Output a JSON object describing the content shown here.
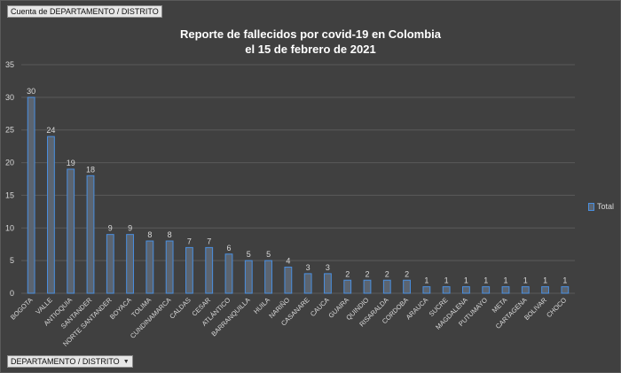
{
  "pivot": {
    "values_field": "Cuenta de DEPARTAMENTO / DISTRITO",
    "axis_field": "DEPARTAMENTO / DISTRITO",
    "axis_field_icon": "dropdown-arrow-icon"
  },
  "colors": {
    "background": "#404040",
    "bar_fill": "#5b6470",
    "bar_stroke": "#4a8fe0",
    "gridline": "#5a5a5a",
    "text": "#d9d9d9"
  },
  "chart_data": {
    "type": "bar",
    "title": "Reporte de fallecidos por covid-19 en Colombia",
    "subtitle": "el 15 de febrero de 2021",
    "xlabel": "",
    "ylabel": "",
    "ylim": [
      0,
      35
    ],
    "yticks": [
      0,
      5,
      10,
      15,
      20,
      25,
      30,
      35
    ],
    "grid": true,
    "legend_position": "right",
    "categories": [
      "BOGOTA",
      "VALLE",
      "ANTIOQUIA",
      "SANTANDER",
      "NORTE SANTANDER",
      "BOYACA",
      "TOLIMA",
      "CUNDINAMARCA",
      "CALDAS",
      "CESAR",
      "ATLÁNTICO",
      "BARRANQUILLA",
      "HUILA",
      "NARIÑO",
      "CASANARE",
      "CAUCA",
      "GUAIRA",
      "QUINDIO",
      "RISARALDA",
      "CORDOBA",
      "ARAUCA",
      "SUCRE",
      "MAGDALENA",
      "PUTUMAYO",
      "META",
      "CARTAGENA",
      "BOLIVAR",
      "CHOCO"
    ],
    "series": [
      {
        "name": "Total",
        "values": [
          30,
          24,
          19,
          18,
          9,
          9,
          8,
          8,
          7,
          7,
          6,
          5,
          5,
          4,
          3,
          3,
          2,
          2,
          2,
          2,
          1,
          1,
          1,
          1,
          1,
          1,
          1,
          1
        ]
      }
    ]
  }
}
